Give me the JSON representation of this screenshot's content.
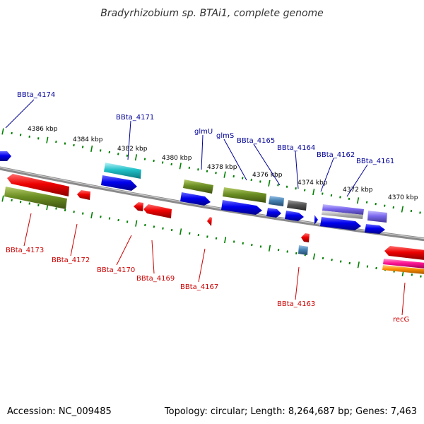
{
  "title": "Bradyrhizobium sp. BTAi1, complete genome",
  "footer": {
    "accession": "Accession: NC_009485",
    "summary": "Topology: circular; Length: 8,264,687 bp; Genes: 7,463"
  },
  "kbp_labels": [
    "4386 kbp",
    "4384 kbp",
    "4382 kbp",
    "4380 kbp",
    "4378 kbp",
    "4376 kbp",
    "4374 kbp",
    "4372 kbp",
    "4370 kbp"
  ],
  "top_gene_labels": [
    "BBta_4174",
    "BBta_4171",
    "glmU",
    "glmS",
    "BBta_4165",
    "BBta_4164",
    "BBta_4162",
    "BBta_4161"
  ],
  "bottom_gene_labels": [
    "BBta_4173",
    "BBta_4172",
    "BBta_4170",
    "BBta_4169",
    "BBta_4167",
    "BBta_4163",
    "recG"
  ],
  "colors": {
    "forward_cds": "#0000ee",
    "reverse_cds": "#ee0000",
    "olive_track": "#6b8e23",
    "cyan_track": "#20c0c8",
    "steel_track": "#4682b4",
    "gray_track": "#555555",
    "purple_track": "#7b68ee",
    "silver_track": "#b0b0b0",
    "pink_track": "#ff1493",
    "orange_track": "#ff8c00",
    "backbone": "#888888",
    "tick": "#008000",
    "top_label": "#000099",
    "bottom_label": "#cc0000"
  }
}
